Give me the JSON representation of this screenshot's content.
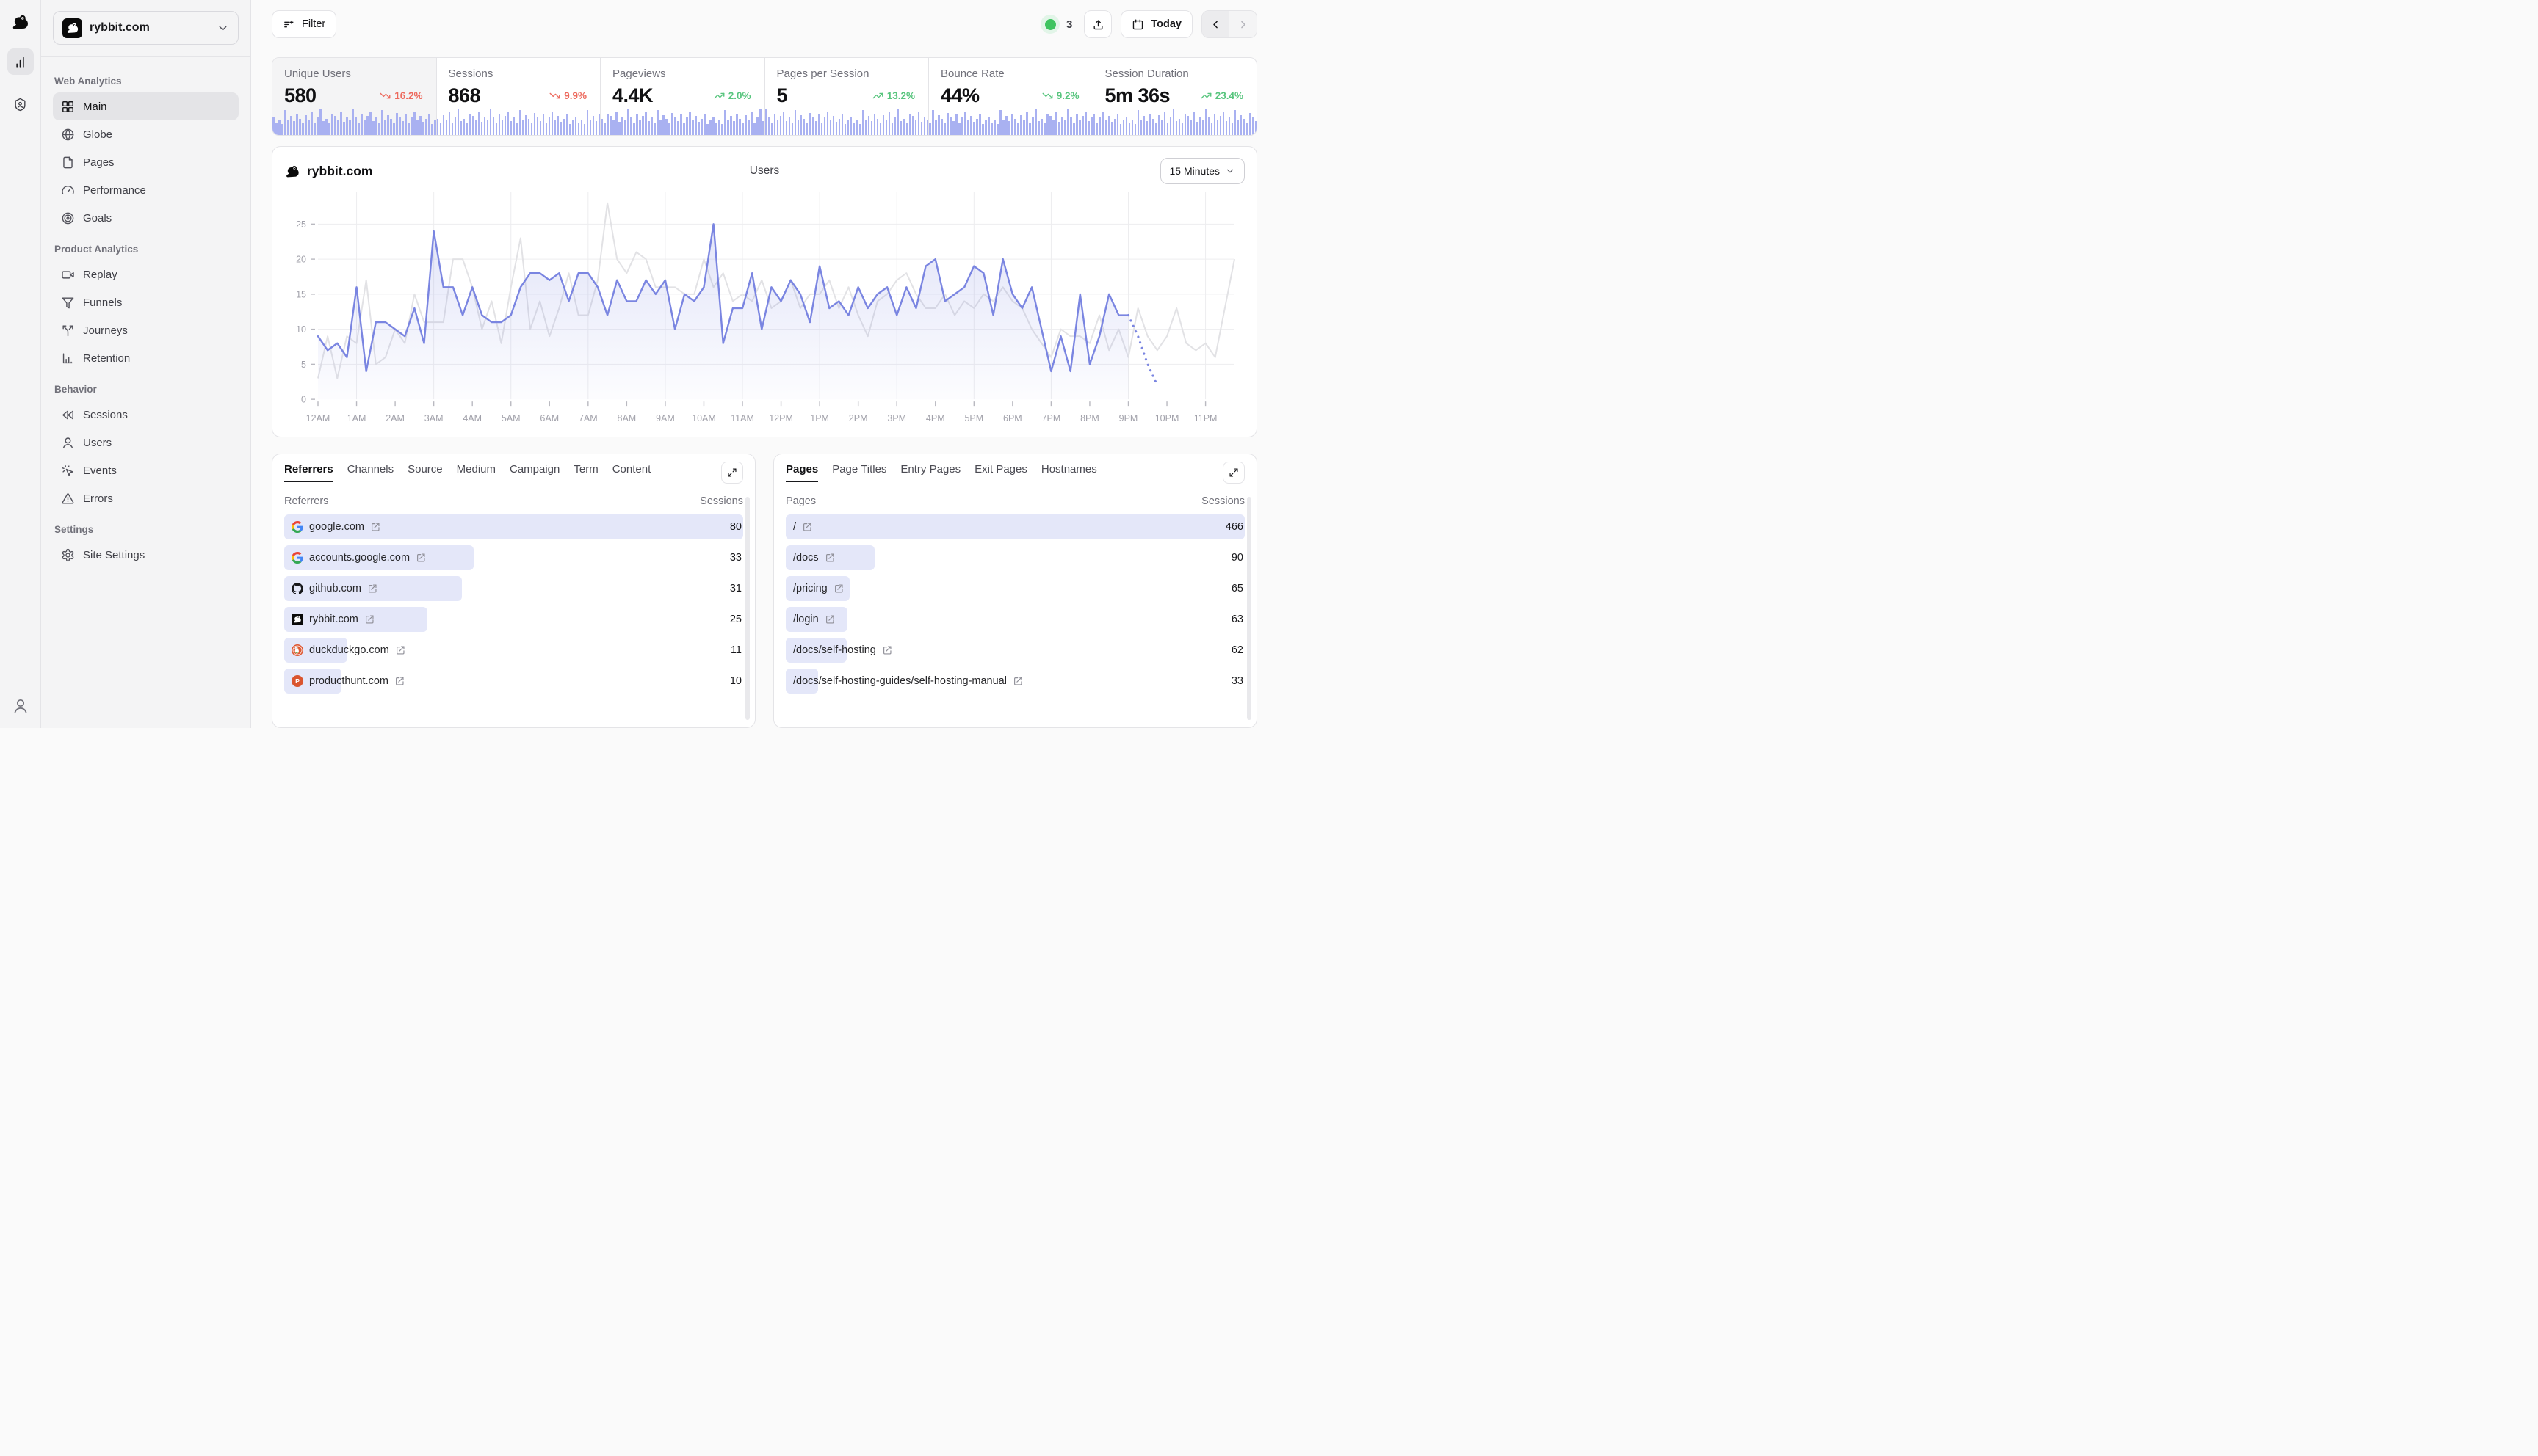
{
  "colors": {
    "accent": "#7a85e1",
    "accent_soft": "#a9b1f1",
    "row_bar": "#e4e7f9",
    "positive": "#58c57e",
    "negative": "#ed6a5e",
    "online_dot": "#3ec45f",
    "prev_line": "#e2e2e5",
    "grid_line": "#ededef",
    "tick_label": "#a1a1aa"
  },
  "sidebar": {
    "site_selector": {
      "label": "rybbit.com"
    },
    "sections": [
      {
        "label": "Web Analytics",
        "items": [
          {
            "label": "Main",
            "icon": "grid",
            "active": true
          },
          {
            "label": "Globe",
            "icon": "globe"
          },
          {
            "label": "Pages",
            "icon": "file"
          },
          {
            "label": "Performance",
            "icon": "gauge"
          },
          {
            "label": "Goals",
            "icon": "target"
          }
        ]
      },
      {
        "label": "Product Analytics",
        "items": [
          {
            "label": "Replay",
            "icon": "video"
          },
          {
            "label": "Funnels",
            "icon": "funnel"
          },
          {
            "label": "Journeys",
            "icon": "split"
          },
          {
            "label": "Retention",
            "icon": "chartAxis"
          }
        ]
      },
      {
        "label": "Behavior",
        "items": [
          {
            "label": "Sessions",
            "icon": "rewind"
          },
          {
            "label": "Users",
            "icon": "user"
          },
          {
            "label": "Events",
            "icon": "click"
          },
          {
            "label": "Errors",
            "icon": "warn"
          }
        ]
      },
      {
        "label": "Settings",
        "items": [
          {
            "label": "Site Settings",
            "icon": "gear"
          }
        ]
      }
    ]
  },
  "topbar": {
    "filter_label": "Filter",
    "online_count": "3",
    "date_label": "Today"
  },
  "stats": [
    {
      "label": "Unique Users",
      "value": "580",
      "change": "16.2%",
      "trend": "down",
      "tone": "negative",
      "selected": true
    },
    {
      "label": "Sessions",
      "value": "868",
      "change": "9.9%",
      "trend": "down",
      "tone": "negative"
    },
    {
      "label": "Pageviews",
      "value": "4.4K",
      "change": "2.0%",
      "trend": "up",
      "tone": "positive"
    },
    {
      "label": "Pages per Session",
      "value": "5",
      "change": "13.2%",
      "trend": "up",
      "tone": "positive"
    },
    {
      "label": "Bounce Rate",
      "value": "44%",
      "change": "9.2%",
      "trend": "down",
      "tone": "positive"
    },
    {
      "label": "Session Duration",
      "value": "5m 36s",
      "change": "23.4%",
      "trend": "up",
      "tone": "positive"
    }
  ],
  "sparkline_bars": [
    44,
    30,
    36,
    26,
    60,
    38,
    46,
    34,
    52,
    40,
    30,
    48,
    36,
    56,
    28,
    44,
    62,
    34,
    40,
    30,
    52,
    46,
    38,
    58,
    32,
    44,
    36,
    64,
    42,
    30,
    50,
    38,
    46,
    56,
    34,
    42,
    30,
    60,
    36,
    48,
    40,
    28,
    54,
    44,
    34,
    50,
    30,
    42,
    58,
    36,
    46,
    32,
    40,
    52,
    26,
    38
  ],
  "chart": {
    "site_label": "rybbit.com",
    "title": "Users",
    "interval_label": "15 Minutes"
  },
  "chart_data": {
    "type": "area",
    "title": "Users",
    "interval": "15 Minutes",
    "x_labels": [
      "12AM",
      "1AM",
      "2AM",
      "3AM",
      "4AM",
      "5AM",
      "6AM",
      "7AM",
      "8AM",
      "9AM",
      "10AM",
      "11AM",
      "12PM",
      "1PM",
      "2PM",
      "3PM",
      "4PM",
      "5PM",
      "6PM",
      "7PM",
      "8PM",
      "9PM",
      "10PM",
      "11PM"
    ],
    "points_per_hour": 4,
    "ymax": 29,
    "yticks": [
      0,
      5,
      10,
      15,
      20,
      25
    ],
    "series": [
      {
        "name": "previous",
        "values": [
          3,
          9,
          3,
          9,
          8,
          17,
          5,
          6,
          10,
          8,
          15,
          11,
          11,
          11,
          20,
          20,
          16,
          10,
          14,
          8,
          16,
          23,
          10,
          14,
          9,
          13,
          18,
          12,
          12,
          17,
          28,
          20,
          18,
          21,
          20,
          16,
          16,
          16,
          15,
          15,
          20,
          16,
          18,
          14,
          15,
          14,
          17,
          13,
          14,
          17,
          13,
          15,
          15,
          17,
          13,
          16,
          12,
          9,
          14,
          15,
          17,
          18,
          15,
          13,
          13,
          15,
          12,
          14,
          13,
          15,
          14,
          16,
          14,
          13,
          10,
          8,
          6,
          10,
          9,
          9,
          8,
          12,
          7,
          10,
          6,
          13,
          9,
          7,
          9,
          13,
          8,
          7,
          8,
          6,
          13,
          20
        ]
      },
      {
        "name": "current",
        "values": [
          9,
          7,
          8,
          6,
          16,
          4,
          11,
          11,
          10,
          9,
          13,
          8,
          24,
          16,
          16,
          12,
          16,
          12,
          11,
          11,
          12,
          16,
          18,
          18,
          17,
          18,
          14,
          18,
          18,
          16,
          12,
          17,
          14,
          14,
          17,
          15,
          17,
          10,
          15,
          14,
          16,
          25,
          8,
          13,
          13,
          18,
          10,
          16,
          14,
          17,
          15,
          11,
          19,
          13,
          14,
          12,
          16,
          13,
          15,
          16,
          12,
          16,
          13,
          19,
          20,
          14,
          15,
          16,
          19,
          18,
          12,
          20,
          15,
          13,
          16,
          10,
          4,
          9,
          4,
          15,
          5,
          9,
          15,
          12,
          12,
          9,
          5,
          2
        ],
        "dotted_tail": 3
      }
    ]
  },
  "referrers_card": {
    "tabs": [
      "Referrers",
      "Channels",
      "Source",
      "Medium",
      "Campaign",
      "Term",
      "Content"
    ],
    "active_tab": "Referrers",
    "col_left": "Referrers",
    "col_right": "Sessions",
    "max": 80,
    "rows": [
      {
        "label": "google.com",
        "value": 80,
        "favicon": "google"
      },
      {
        "label": "accounts.google.com",
        "value": 33,
        "favicon": "google"
      },
      {
        "label": "github.com",
        "value": 31,
        "favicon": "github"
      },
      {
        "label": "rybbit.com",
        "value": 25,
        "favicon": "rybbit"
      },
      {
        "label": "duckduckgo.com",
        "value": 11,
        "favicon": "duckduckgo"
      },
      {
        "label": "producthunt.com",
        "value": 10,
        "favicon": "producthunt"
      }
    ]
  },
  "pages_card": {
    "tabs": [
      "Pages",
      "Page Titles",
      "Entry Pages",
      "Exit Pages",
      "Hostnames"
    ],
    "active_tab": "Pages",
    "col_left": "Pages",
    "col_right": "Sessions",
    "max": 466,
    "rows": [
      {
        "label": "/",
        "value": 466
      },
      {
        "label": "/docs",
        "value": 90
      },
      {
        "label": "/pricing",
        "value": 65
      },
      {
        "label": "/login",
        "value": 63
      },
      {
        "label": "/docs/self-hosting",
        "value": 62
      },
      {
        "label": "/docs/self-hosting-guides/self-hosting-manual",
        "value": 33
      }
    ]
  }
}
